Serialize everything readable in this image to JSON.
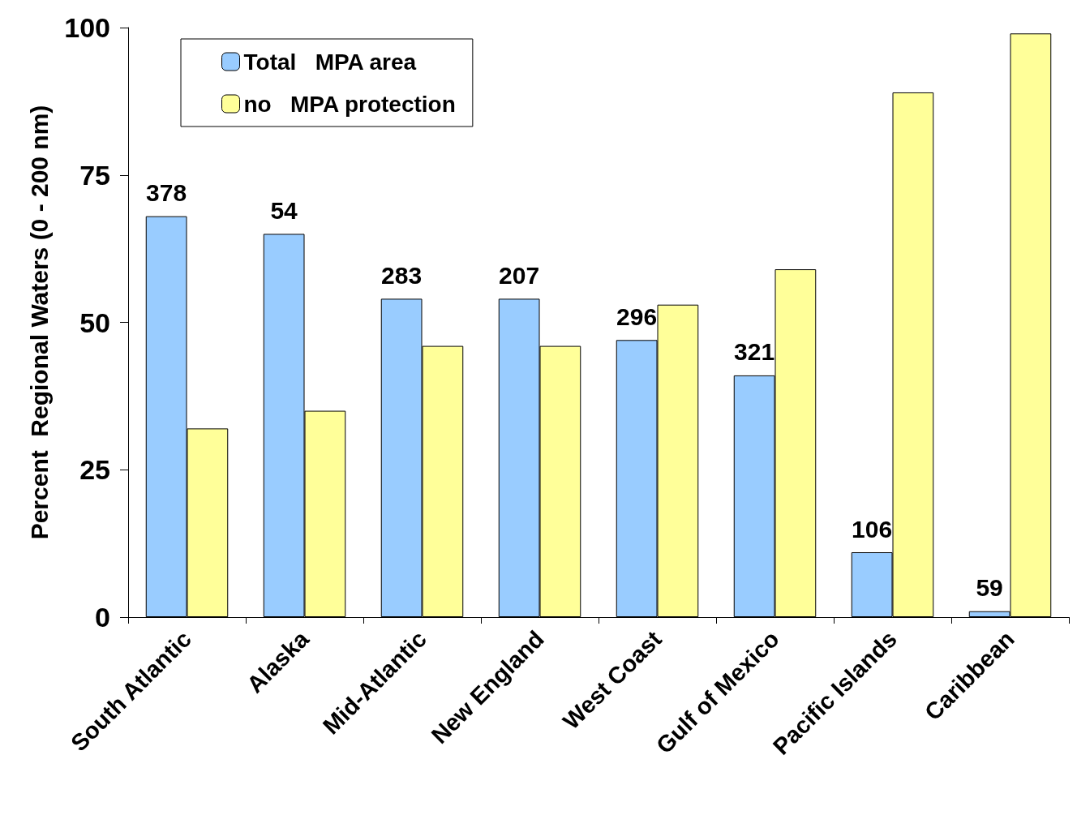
{
  "chart_data": {
    "type": "bar",
    "ylabel": "Percent  Regional Waters (0 - 200 nm)",
    "categories": [
      "South Atlantic",
      "Alaska",
      "Mid-Atlantic",
      "New England",
      "West Coast",
      "Gulf of Mexico",
      "Pacific Islands",
      "Caribbean"
    ],
    "series": [
      {
        "name": "Total   MPA area",
        "color": "#99ccff",
        "values": [
          68,
          65,
          54,
          54,
          47,
          41,
          11,
          1
        ]
      },
      {
        "name": "no   MPA protection",
        "color": "#ffff99",
        "values": [
          32,
          35,
          46,
          46,
          53,
          59,
          89,
          99
        ]
      }
    ],
    "annotations": [
      {
        "text": "378",
        "x": "South Atlantic",
        "y": 68
      },
      {
        "text": "54",
        "x": "Alaska",
        "y": 65
      },
      {
        "text": "283",
        "x": "Mid-Atlantic",
        "y": 54
      },
      {
        "text": "207",
        "x": "New England",
        "y": 54
      },
      {
        "text": "296",
        "x": "West Coast",
        "y": 47
      },
      {
        "text": "321",
        "x": "Gulf of Mexico",
        "y": 41
      },
      {
        "text": "106",
        "x": "Pacific Islands",
        "y": 11
      },
      {
        "text": "59",
        "x": "Caribbean",
        "y": 1
      }
    ],
    "ylim": [
      0,
      100
    ],
    "yticks": [
      0,
      25,
      50,
      75,
      100
    ],
    "grid": false,
    "legend": "top left"
  }
}
